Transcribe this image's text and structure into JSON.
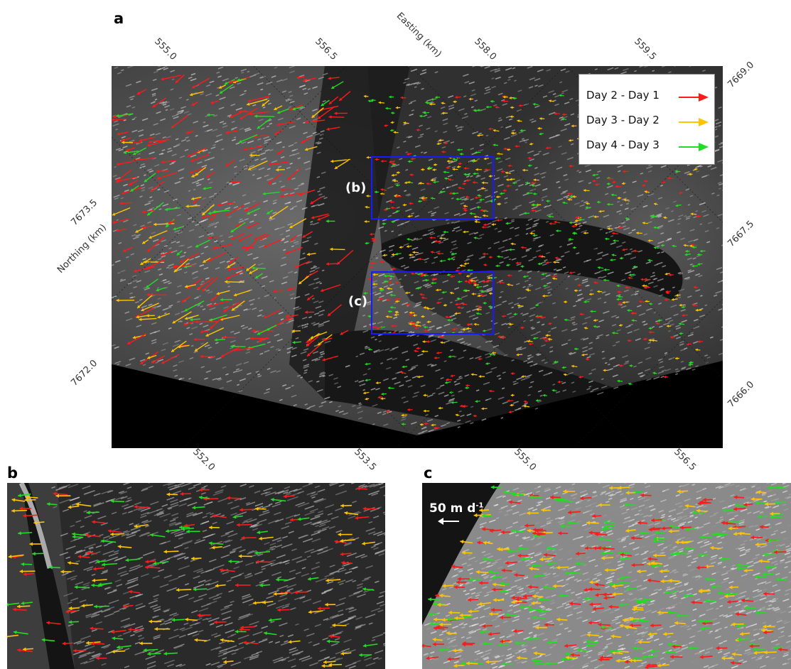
{
  "panels": {
    "a": "a",
    "b": "b",
    "c": "c"
  },
  "axes": {
    "easting_title": "Easting (km)",
    "northing_title": "Northing (km)",
    "top_ticks": [
      "555.0",
      "556.5",
      "558.0",
      "559.5"
    ],
    "bottom_ticks": [
      "552.0",
      "553.5",
      "555.0",
      "556.5"
    ],
    "left_ticks": [
      "7673.5",
      "7672.0"
    ],
    "right_ticks": [
      "7669.0",
      "7667.5",
      "7666.0"
    ]
  },
  "legend": {
    "entries": [
      {
        "label": "Day 2 - Day 1",
        "color": "#ff1a1a"
      },
      {
        "label": "Day 3 - Day 2",
        "color": "#ffc400"
      },
      {
        "label": "Day 4 - Day 3",
        "color": "#22dd22"
      }
    ]
  },
  "boxes": {
    "b_label": "(b)",
    "c_label": "(c)",
    "color": "#1a1aff"
  },
  "scale": {
    "label": "50 m d",
    "superscript": "-1"
  }
}
